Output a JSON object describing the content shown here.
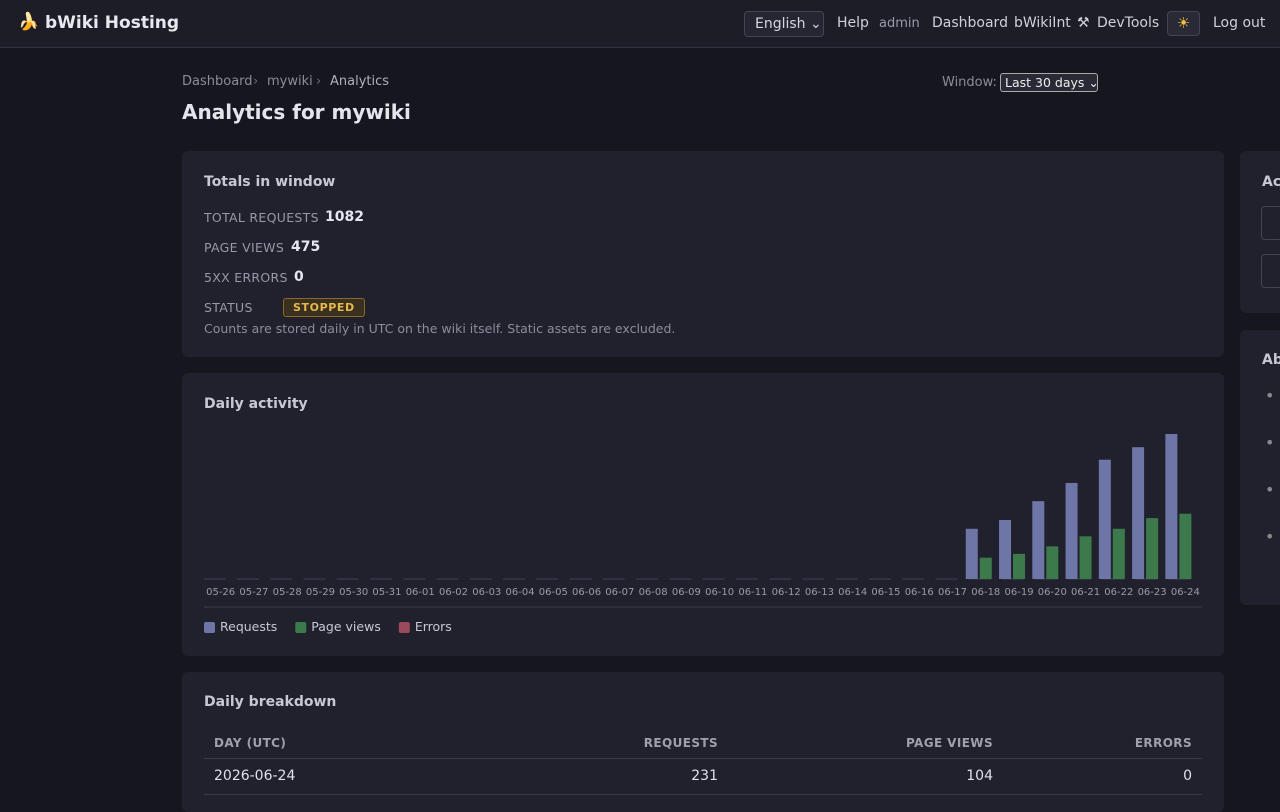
{
  "header": {
    "brand": "bWiki Hosting",
    "language": "English",
    "nav": [
      "Help",
      "admin",
      "Dashboard",
      "bWikiInt",
      "DevTools",
      "Log out"
    ]
  },
  "breadcrumb": [
    "Dashboard",
    "mywiki",
    "Analytics"
  ],
  "window": {
    "label": "Window:",
    "selected": "Last 30 days"
  },
  "title": "Analytics for mywiki",
  "totals": {
    "heading": "Totals in window",
    "rows": [
      {
        "label": "TOTAL REQUESTS",
        "value": 1082
      },
      {
        "label": "PAGE VIEWS",
        "value": 475
      },
      {
        "label": "5XX ERRORS",
        "value": 0
      }
    ],
    "status_label": "STATUS",
    "status": "STOPPED",
    "note": "Counts are stored daily in UTC on the wiki itself. Static assets are excluded."
  },
  "chart_data": {
    "type": "bar",
    "title": "Daily activity",
    "categories": [
      "05-26",
      "05-27",
      "05-28",
      "05-29",
      "05-30",
      "05-31",
      "06-01",
      "06-02",
      "06-03",
      "06-04",
      "06-05",
      "06-06",
      "06-07",
      "06-08",
      "06-09",
      "06-10",
      "06-11",
      "06-12",
      "06-13",
      "06-14",
      "06-15",
      "06-16",
      "06-17",
      "06-18",
      "06-19",
      "06-20",
      "06-21",
      "06-22",
      "06-23",
      "06-24"
    ],
    "series": [
      {
        "name": "Requests",
        "color": "#6e76a8",
        "values": [
          0,
          0,
          0,
          0,
          0,
          0,
          0,
          0,
          0,
          0,
          0,
          0,
          0,
          0,
          0,
          0,
          0,
          0,
          0,
          0,
          0,
          0,
          0,
          80,
          94,
          124,
          153,
          190,
          210,
          231
        ]
      },
      {
        "name": "Page views",
        "color": "#3c7a4c",
        "values": [
          0,
          0,
          0,
          0,
          0,
          0,
          0,
          0,
          0,
          0,
          0,
          0,
          0,
          0,
          0,
          0,
          0,
          0,
          0,
          0,
          0,
          0,
          0,
          34,
          40,
          52,
          68,
          80,
          97,
          104
        ]
      },
      {
        "name": "Errors",
        "color": "#9a4a5c",
        "values": [
          0,
          0,
          0,
          0,
          0,
          0,
          0,
          0,
          0,
          0,
          0,
          0,
          0,
          0,
          0,
          0,
          0,
          0,
          0,
          0,
          0,
          0,
          0,
          0,
          0,
          0,
          0,
          0,
          0,
          0
        ]
      }
    ]
  },
  "breakdown": {
    "heading": "Daily breakdown",
    "columns": [
      "DAY (UTC)",
      "REQUESTS",
      "PAGE VIEWS",
      "ERRORS"
    ],
    "rows": [
      [
        "2026-06-24",
        231,
        104,
        0
      ]
    ]
  },
  "sidebar": [
    "Act",
    "Ab"
  ]
}
